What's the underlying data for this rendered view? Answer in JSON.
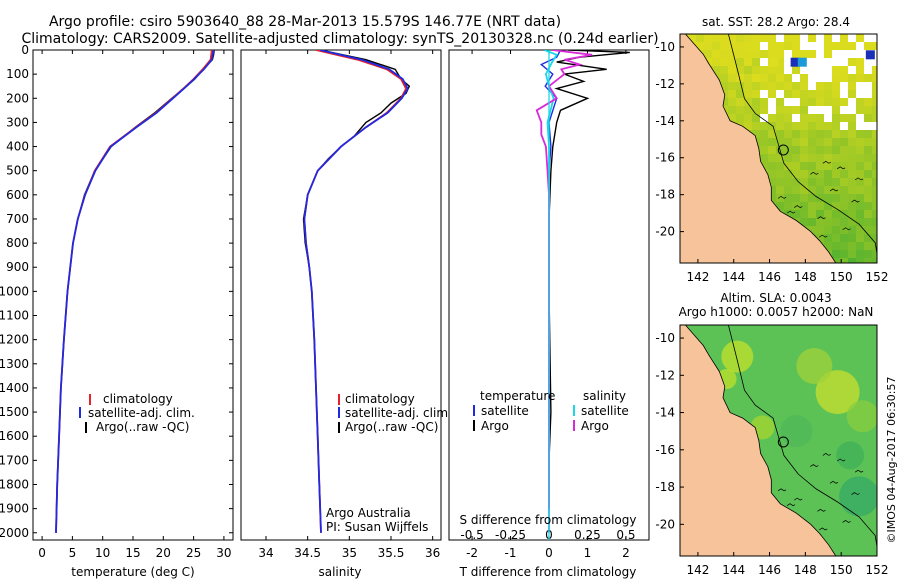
{
  "header": {
    "line1": "Argo profile: csiro 5903640_88 28-Mar-2013 15.579S 146.77E (NRT data)",
    "line2": "Climatology: CARS2009. Satellite-adjusted climatology: synTS_20130328.nc (0.24d earlier)"
  },
  "colors": {
    "climatology": "#e8202a",
    "satellite": "#1f2be0",
    "argo": "#000000",
    "temp_satellite": "#1f2be0",
    "sal_satellite": "#19d8e8",
    "sal_argo": "#d82ad8",
    "land": "#f6c39a"
  },
  "chart_data": [
    {
      "type": "line",
      "name": "temperature-profile",
      "xlabel": "temperature (deg C)",
      "xlim": [
        -1.5,
        31.5
      ],
      "ylim": [
        2030,
        0
      ],
      "x_ticks": [
        0,
        5,
        10,
        15,
        20,
        25,
        30
      ],
      "y_ticks": [
        0,
        100,
        200,
        300,
        400,
        500,
        600,
        700,
        800,
        900,
        1000,
        1100,
        1200,
        1300,
        1400,
        1500,
        1600,
        1700,
        1800,
        1900,
        2000
      ],
      "legend": [
        "climatology",
        "satellite-adj. clim.",
        "Argo(..raw -QC)"
      ],
      "series": [
        {
          "name": "climatology",
          "color": "#e8202a",
          "depth": [
            0,
            40,
            80,
            120,
            160,
            200,
            260,
            320,
            400,
            500,
            600,
            700,
            800,
            1000,
            1200,
            1400,
            1600,
            1800,
            2000
          ],
          "values": [
            28.0,
            27.8,
            26.5,
            25.0,
            23.3,
            21.5,
            18.8,
            15.5,
            11.2,
            8.7,
            7.1,
            5.9,
            5.1,
            4.2,
            3.6,
            3.1,
            2.8,
            2.5,
            2.3
          ]
        },
        {
          "name": "satellite-adj. clim.",
          "color": "#1f2be0",
          "depth": [
            0,
            40,
            80,
            120,
            160,
            200,
            260,
            320,
            400,
            500,
            600,
            700,
            800,
            1000,
            1200,
            1400,
            1600,
            1800,
            2000
          ],
          "values": [
            28.3,
            28.0,
            26.7,
            25.1,
            23.4,
            21.6,
            18.9,
            15.6,
            11.3,
            8.8,
            7.1,
            5.9,
            5.1,
            4.2,
            3.6,
            3.1,
            2.8,
            2.5,
            2.3
          ]
        },
        {
          "name": "Argo",
          "color": "#000000",
          "depth": [
            0,
            20,
            40,
            80,
            120,
            160,
            200,
            260,
            320,
            400,
            500,
            600,
            700,
            800,
            1000,
            1200,
            1400,
            1600,
            1800,
            2000
          ],
          "values": [
            28.4,
            28.3,
            28.1,
            26.6,
            25.2,
            23.4,
            21.4,
            18.6,
            15.4,
            11.4,
            8.7,
            7.0,
            5.9,
            5.1,
            4.2,
            3.6,
            3.1,
            2.8,
            2.5,
            2.3
          ]
        }
      ]
    },
    {
      "type": "line",
      "name": "salinity-profile",
      "xlabel": "salinity",
      "xlim": [
        33.7,
        36.1
      ],
      "ylim": [
        2030,
        0
      ],
      "x_ticks": [
        34,
        34.5,
        35,
        35.5,
        36
      ],
      "legend": [
        "climatology",
        "satellite-adj. clim.",
        "Argo(..raw -QC)"
      ],
      "annotation": [
        "Argo Australia",
        "PI: Susan Wijffels"
      ],
      "series": [
        {
          "name": "climatology",
          "color": "#e8202a",
          "depth": [
            0,
            40,
            80,
            120,
            160,
            200,
            260,
            320,
            400,
            500,
            600,
            700,
            800,
            900,
            1000,
            1200,
            1400,
            1600,
            1800,
            2000
          ],
          "values": [
            34.6,
            35.1,
            35.45,
            35.62,
            35.68,
            35.62,
            35.45,
            35.2,
            34.9,
            34.62,
            34.5,
            34.46,
            34.48,
            34.52,
            34.55,
            34.58,
            34.6,
            34.62,
            34.64,
            34.66
          ]
        },
        {
          "name": "satellite-adj. clim.",
          "color": "#1f2be0",
          "depth": [
            0,
            40,
            80,
            120,
            160,
            200,
            260,
            320,
            400,
            500,
            600,
            700,
            800,
            900,
            1000,
            1200,
            1400,
            1600,
            1800,
            2000
          ],
          "values": [
            34.65,
            35.15,
            35.48,
            35.64,
            35.7,
            35.63,
            35.46,
            35.2,
            34.9,
            34.62,
            34.5,
            34.46,
            34.48,
            34.52,
            34.55,
            34.58,
            34.6,
            34.62,
            34.64,
            34.66
          ]
        },
        {
          "name": "Argo",
          "color": "#000000",
          "depth": [
            0,
            40,
            80,
            120,
            150,
            180,
            220,
            260,
            300,
            360,
            400,
            450,
            500,
            600,
            700,
            800,
            900,
            1000,
            1200,
            1400,
            1600,
            1800,
            1900
          ],
          "values": [
            34.65,
            35.2,
            35.55,
            35.62,
            35.72,
            35.68,
            35.5,
            35.38,
            35.2,
            35.05,
            34.9,
            34.75,
            34.62,
            34.5,
            34.45,
            34.47,
            34.52,
            34.55,
            34.58,
            34.6,
            34.62,
            34.64,
            34.65
          ]
        }
      ]
    },
    {
      "type": "line",
      "name": "difference-profile",
      "xlabel_top": "S difference from climatology",
      "xlabel_bottom": "T difference from climatology",
      "xlim_T": [
        -2.6,
        2.6
      ],
      "x_ticks_T": [
        -2,
        -1,
        0,
        1,
        2
      ],
      "x_ticks_S": [
        "-0.5",
        "-0.25",
        "0",
        "0.25",
        "0.5"
      ],
      "ylim": [
        2030,
        0
      ],
      "legend_temperature": [
        "satellite",
        "Argo"
      ],
      "legend_salinity": [
        "satellite",
        "Argo"
      ],
      "legend_titles": {
        "temperature": "temperature",
        "salinity": "salinity"
      },
      "series": [
        {
          "name": "T satellite",
          "color": "#1f2be0",
          "depth": [
            0,
            30,
            60,
            100,
            150,
            200,
            300,
            400,
            500,
            700,
            1000,
            1500,
            2000
          ],
          "values": [
            0.3,
            0.2,
            -0.2,
            0.1,
            -0.1,
            0.2,
            0.0,
            0.05,
            0.0,
            0.0,
            0.0,
            0.0,
            0.0
          ]
        },
        {
          "name": "T Argo",
          "color": "#000000",
          "depth": [
            0,
            10,
            30,
            50,
            80,
            100,
            130,
            160,
            200,
            250,
            300,
            400,
            500,
            700,
            1000,
            1500,
            1700,
            1900
          ],
          "values": [
            0.5,
            2.1,
            0.8,
            0.2,
            1.5,
            0.4,
            0.9,
            0.2,
            1.0,
            0.3,
            0.2,
            0.1,
            0.05,
            0.0,
            0.0,
            0.05,
            0.0,
            0.0
          ]
        },
        {
          "name": "S satellite",
          "color": "#19d8e8",
          "depth": [
            0,
            20,
            50,
            100,
            150,
            200,
            300,
            400,
            600,
            900,
            1200,
            1500,
            1900
          ],
          "values": [
            -0.03,
            0.05,
            0.02,
            -0.02,
            0.0,
            0.03,
            -0.01,
            0.0,
            0.0,
            0.0,
            0.0,
            0.0,
            0.0
          ]
        },
        {
          "name": "S Argo",
          "color": "#d82ad8",
          "depth": [
            0,
            20,
            40,
            60,
            80,
            100,
            150,
            200,
            250,
            300,
            350,
            400,
            500,
            600,
            700,
            900,
            1200,
            1500,
            1900
          ],
          "values": [
            0.02,
            0.28,
            0.1,
            0.2,
            0.08,
            0.1,
            0.0,
            0.05,
            -0.08,
            -0.05,
            -0.05,
            -0.02,
            -0.01,
            0.0,
            0.0,
            0.0,
            0.0,
            0.0,
            0.0
          ]
        }
      ]
    },
    {
      "type": "heatmap",
      "name": "sst-map",
      "title": "sat. SST: 28.2  Argo: 28.4",
      "x_ticks": [
        142,
        144,
        146,
        148,
        150,
        152
      ],
      "y_ticks": [
        -10,
        -12,
        -14,
        -16,
        -18,
        -20
      ],
      "xlim": [
        141,
        152
      ],
      "ylim": [
        -21.7,
        -9.3
      ],
      "argo_position": {
        "lon": 146.77,
        "lat": -15.579
      }
    },
    {
      "type": "heatmap",
      "name": "sla-map",
      "title_lines": [
        "Altim. SLA: 0.0043",
        "Argo h1000: 0.0057 h2000: NaN"
      ],
      "x_ticks": [
        142,
        144,
        146,
        148,
        150,
        152
      ],
      "y_ticks": [
        -10,
        -12,
        -14,
        -16,
        -18,
        -20
      ],
      "xlim": [
        141,
        152
      ],
      "ylim": [
        -21.7,
        -9.3
      ],
      "argo_position": {
        "lon": 146.77,
        "lat": -15.579
      }
    }
  ],
  "footer": {
    "credit": "©IMOS 04-Aug-2017 06:30:57"
  }
}
